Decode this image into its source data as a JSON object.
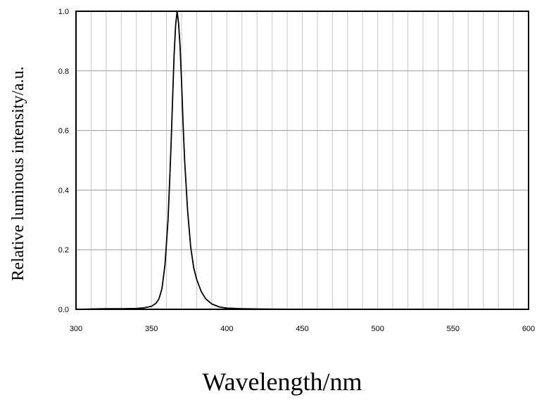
{
  "chart_data": {
    "type": "line",
    "title": "",
    "xlabel": "Wavelength/nm",
    "ylabel": "Relative luminous intensity/a.u.",
    "xlim": [
      300,
      600
    ],
    "ylim": [
      0.0,
      1.0
    ],
    "x_ticks": [
      "300",
      "350",
      "400",
      "450",
      "500",
      "550",
      "600"
    ],
    "y_ticks": [
      "0.0",
      "0.2",
      "0.4",
      "0.6",
      "0.8",
      "1.0"
    ],
    "grid": true,
    "x_minor_grid_step": 10,
    "y_grid_step": 0.2,
    "line_color": "#000000",
    "series": [
      {
        "x": [
          300,
          310,
          320,
          330,
          340,
          345,
          350,
          353,
          355,
          357,
          359,
          361,
          362,
          363,
          364,
          365,
          366,
          367,
          368,
          369,
          370,
          371,
          372,
          374,
          376,
          378,
          380,
          383,
          386,
          390,
          395,
          400,
          410,
          420,
          450,
          500,
          550,
          600
        ],
        "y": [
          0.0,
          0.001,
          0.002,
          0.002,
          0.003,
          0.005,
          0.01,
          0.02,
          0.035,
          0.07,
          0.15,
          0.3,
          0.42,
          0.55,
          0.7,
          0.85,
          0.95,
          1.0,
          0.96,
          0.88,
          0.76,
          0.62,
          0.5,
          0.33,
          0.21,
          0.14,
          0.1,
          0.06,
          0.035,
          0.018,
          0.008,
          0.004,
          0.002,
          0.001,
          0.0,
          0.0,
          0.0,
          0.0
        ]
      }
    ]
  }
}
